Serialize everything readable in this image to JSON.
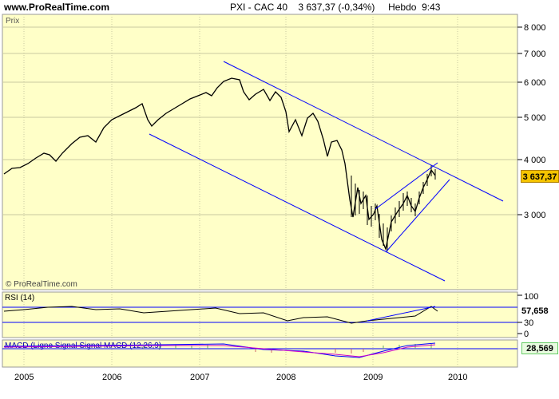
{
  "header": {
    "site": "www.ProRealTime.com",
    "title": "PXI - CAC 40    3 637,37 (-0,34%)     Hebdo  9:43"
  },
  "panels": {
    "price_label": "Prix",
    "watermark": "© ProRealTime.com",
    "rsi_label": "RSI (14)",
    "macd_label": "MACD (Ligne Signal Signal MACD (12,26,9)"
  },
  "badges": {
    "price": "3 637,37",
    "rsi_top": "100",
    "rsi_value": "57,658",
    "rsi_30": "30",
    "rsi_0": "0",
    "macd": "28,569"
  },
  "axes": {
    "price_ticks": [
      "8 000",
      "7 000",
      "6 000",
      "5 000",
      "4 000",
      "3 000"
    ],
    "years": [
      "2005",
      "2006",
      "2007",
      "2008",
      "2009",
      "2010"
    ]
  },
  "colors": {
    "panel_bg": "#ffffc8",
    "grid": "#c9c9a0",
    "candles": "#000000",
    "trendline": "#0000ff",
    "price_badge": "#f5c400",
    "macd_badge_bg": "#e8fbe0"
  },
  "chart_data": {
    "type": "line",
    "title": "PXI - CAC 40",
    "ylabel": "Prix",
    "x": [
      "2005",
      "2006",
      "2007",
      "2008",
      "2009",
      "2010"
    ],
    "series": [
      {
        "name": "CAC 40",
        "values": [
          3800,
          4600,
          5500,
          5600,
          3000,
          3637
        ]
      }
    ],
    "yscale": "log",
    "ylim": [
      2300,
      8500
    ],
    "grid": true,
    "last_value": 3637.37,
    "change_pct": -0.34,
    "rsi_14_last": 57.658,
    "macd_last": 28.569
  }
}
